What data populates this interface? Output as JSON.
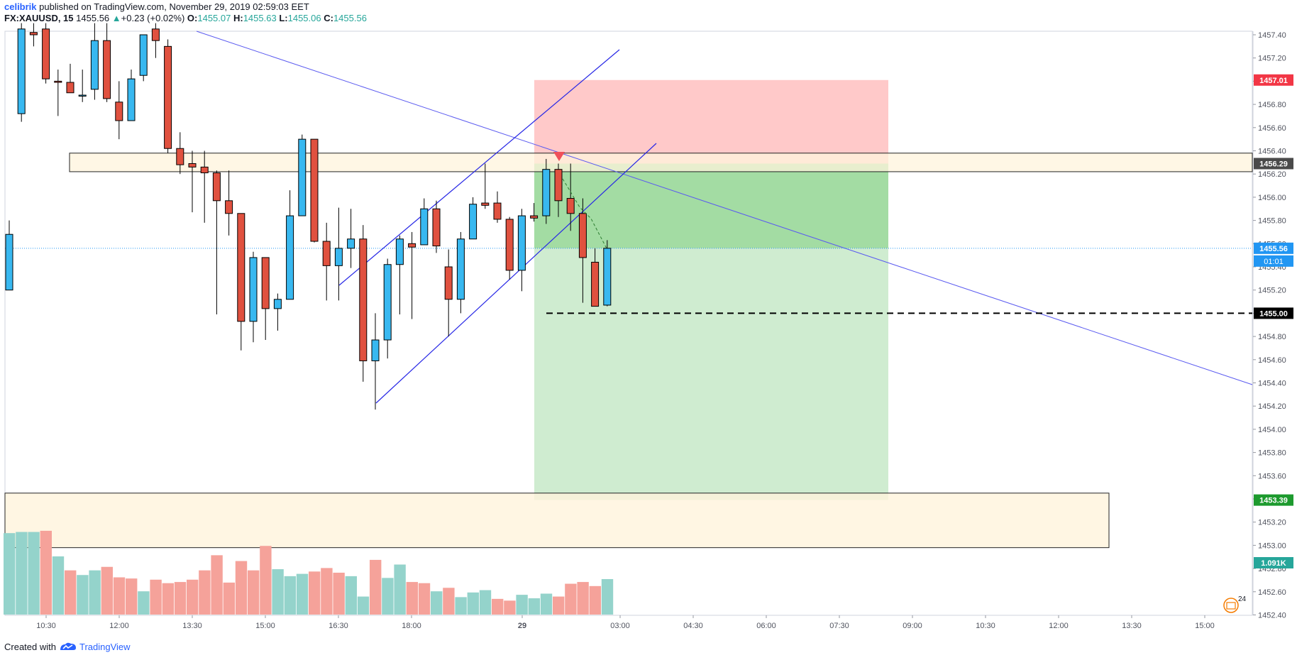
{
  "header": {
    "author": "celibrik",
    "published_text": "published on TradingView.com, November 29, 2019 02:59:03 EET",
    "symbol": "FX:XAUUSD, 15",
    "last": "1455.56",
    "change_arrow": "▲",
    "change": "+0.23 (+0.02%)",
    "o_label": "O:",
    "o": "1455.07",
    "h_label": "H:",
    "h": "1455.63",
    "l_label": "L:",
    "l": "1455.06",
    "c_label": "C:",
    "c": "1455.56"
  },
  "footer": {
    "created_with": "Created with",
    "brand": "TradingView",
    "logo_icon": "tradingview-logo-icon"
  },
  "colors": {
    "up": "#38b8f0",
    "down": "#e0513f",
    "vol_up": "#94d3cb",
    "vol_down": "#f5a29a",
    "zone_fill": "#fff4dc",
    "stop_fill": "#ffc9c9",
    "target_fill_dark": "#a3dca3",
    "target_fill_light": "#cfecd0",
    "trend_line": "#5b5bf0",
    "channel": "#2727e6"
  },
  "chart_data": {
    "type": "candlestick",
    "symbol": "FX:XAUUSD",
    "interval": "15",
    "price_ticks": [
      "1457.40",
      "1457.20",
      "1457.00",
      "1456.80",
      "1456.60",
      "1456.40",
      "1456.20",
      "1456.00",
      "1455.80",
      "1455.60",
      "1455.40",
      "1455.20",
      "1455.00",
      "1454.80",
      "1454.60",
      "1454.40",
      "1454.20",
      "1454.00",
      "1453.80",
      "1453.60",
      "1453.40",
      "1453.20",
      "1453.00",
      "1452.80",
      "1452.60",
      "1452.40"
    ],
    "time_labels": [
      "10:30",
      "12:00",
      "13:30",
      "15:00",
      "16:30",
      "18:00",
      "29",
      "03:00",
      "04:30",
      "06:00",
      "07:30",
      "09:00",
      "10:30",
      "12:00",
      "13:30",
      "15:00"
    ],
    "ylim": [
      1452.4,
      1457.4
    ],
    "candles": [
      {
        "o": 1455.2,
        "h": 1455.8,
        "l": 1455.2,
        "c": 1455.68
      },
      {
        "o": 1456.72,
        "h": 1457.5,
        "l": 1456.65,
        "c": 1457.45
      },
      {
        "o": 1457.42,
        "h": 1457.5,
        "l": 1457.3,
        "c": 1457.4
      },
      {
        "o": 1457.45,
        "h": 1457.5,
        "l": 1456.98,
        "c": 1457.02
      },
      {
        "o": 1457.0,
        "h": 1457.1,
        "l": 1456.7,
        "c": 1456.99
      },
      {
        "o": 1456.99,
        "h": 1457.15,
        "l": 1456.9,
        "c": 1456.9
      },
      {
        "o": 1456.88,
        "h": 1457.1,
        "l": 1456.82,
        "c": 1456.88
      },
      {
        "o": 1456.93,
        "h": 1457.5,
        "l": 1456.84,
        "c": 1457.35
      },
      {
        "o": 1457.35,
        "h": 1457.5,
        "l": 1456.82,
        "c": 1456.85
      },
      {
        "o": 1456.82,
        "h": 1457.0,
        "l": 1456.5,
        "c": 1456.66
      },
      {
        "o": 1456.66,
        "h": 1457.1,
        "l": 1456.66,
        "c": 1457.02
      },
      {
        "o": 1457.05,
        "h": 1457.4,
        "l": 1457.0,
        "c": 1457.4
      },
      {
        "o": 1457.45,
        "h": 1457.5,
        "l": 1457.2,
        "c": 1457.35
      },
      {
        "o": 1457.3,
        "h": 1457.36,
        "l": 1456.38,
        "c": 1456.42
      },
      {
        "o": 1456.42,
        "h": 1456.56,
        "l": 1456.2,
        "c": 1456.28
      },
      {
        "o": 1456.29,
        "h": 1456.4,
        "l": 1455.87,
        "c": 1456.26
      },
      {
        "o": 1456.26,
        "h": 1456.4,
        "l": 1455.78,
        "c": 1456.21
      },
      {
        "o": 1456.21,
        "h": 1456.23,
        "l": 1454.99,
        "c": 1455.97
      },
      {
        "o": 1455.97,
        "h": 1456.23,
        "l": 1455.67,
        "c": 1455.86
      },
      {
        "o": 1455.86,
        "h": 1455.86,
        "l": 1454.68,
        "c": 1454.93
      },
      {
        "o": 1454.93,
        "h": 1455.53,
        "l": 1454.75,
        "c": 1455.48
      },
      {
        "o": 1455.48,
        "h": 1455.48,
        "l": 1454.77,
        "c": 1455.04
      },
      {
        "o": 1455.04,
        "h": 1455.17,
        "l": 1454.85,
        "c": 1455.12
      },
      {
        "o": 1455.12,
        "h": 1456.06,
        "l": 1455.12,
        "c": 1455.84
      },
      {
        "o": 1455.84,
        "h": 1456.54,
        "l": 1455.84,
        "c": 1456.5
      },
      {
        "o": 1456.5,
        "h": 1456.5,
        "l": 1455.61,
        "c": 1455.62
      },
      {
        "o": 1455.62,
        "h": 1455.78,
        "l": 1455.11,
        "c": 1455.41
      },
      {
        "o": 1455.41,
        "h": 1455.91,
        "l": 1455.11,
        "c": 1455.56
      },
      {
        "o": 1455.56,
        "h": 1455.9,
        "l": 1455.39,
        "c": 1455.64
      },
      {
        "o": 1455.64,
        "h": 1455.76,
        "l": 1454.41,
        "c": 1454.59
      },
      {
        "o": 1454.59,
        "h": 1455.0,
        "l": 1454.17,
        "c": 1454.77
      },
      {
        "o": 1454.77,
        "h": 1455.47,
        "l": 1454.61,
        "c": 1455.42
      },
      {
        "o": 1455.42,
        "h": 1455.67,
        "l": 1454.99,
        "c": 1455.64
      },
      {
        "o": 1455.6,
        "h": 1455.7,
        "l": 1454.95,
        "c": 1455.57
      },
      {
        "o": 1455.59,
        "h": 1455.99,
        "l": 1455.59,
        "c": 1455.9
      },
      {
        "o": 1455.9,
        "h": 1455.97,
        "l": 1455.52,
        "c": 1455.58
      },
      {
        "o": 1455.4,
        "h": 1455.55,
        "l": 1454.8,
        "c": 1455.12
      },
      {
        "o": 1455.12,
        "h": 1455.7,
        "l": 1455.0,
        "c": 1455.64
      },
      {
        "o": 1455.64,
        "h": 1456.0,
        "l": 1455.64,
        "c": 1455.94
      },
      {
        "o": 1455.95,
        "h": 1456.29,
        "l": 1455.9,
        "c": 1455.93
      },
      {
        "o": 1455.95,
        "h": 1456.05,
        "l": 1455.78,
        "c": 1455.81
      },
      {
        "o": 1455.81,
        "h": 1455.83,
        "l": 1455.29,
        "c": 1455.37
      },
      {
        "o": 1455.37,
        "h": 1455.9,
        "l": 1455.19,
        "c": 1455.84
      },
      {
        "o": 1455.84,
        "h": 1455.95,
        "l": 1455.79,
        "c": 1455.82
      },
      {
        "o": 1455.84,
        "h": 1456.33,
        "l": 1455.77,
        "c": 1456.24
      },
      {
        "o": 1456.24,
        "h": 1456.29,
        "l": 1455.83,
        "c": 1455.97
      },
      {
        "o": 1455.99,
        "h": 1456.29,
        "l": 1455.71,
        "c": 1455.86
      },
      {
        "o": 1455.86,
        "h": 1455.99,
        "l": 1455.09,
        "c": 1455.48
      },
      {
        "o": 1455.44,
        "h": 1455.56,
        "l": 1455.06,
        "c": 1455.06
      },
      {
        "o": 1455.07,
        "h": 1455.63,
        "l": 1455.06,
        "c": 1455.56
      }
    ],
    "volume": [
      {
        "v": 1.4,
        "up": true
      },
      {
        "v": 1.42,
        "up": true
      },
      {
        "v": 1.42,
        "up": true
      },
      {
        "v": 1.44,
        "up": false
      },
      {
        "v": 1.0,
        "up": true
      },
      {
        "v": 0.76,
        "up": false
      },
      {
        "v": 0.68,
        "up": true
      },
      {
        "v": 0.76,
        "up": true
      },
      {
        "v": 0.82,
        "up": false
      },
      {
        "v": 0.64,
        "up": false
      },
      {
        "v": 0.62,
        "up": false
      },
      {
        "v": 0.4,
        "up": true
      },
      {
        "v": 0.6,
        "up": false
      },
      {
        "v": 0.54,
        "up": false
      },
      {
        "v": 0.56,
        "up": false
      },
      {
        "v": 0.6,
        "up": false
      },
      {
        "v": 0.76,
        "up": false
      },
      {
        "v": 1.02,
        "up": false
      },
      {
        "v": 0.55,
        "up": false
      },
      {
        "v": 0.92,
        "up": false
      },
      {
        "v": 0.76,
        "up": false
      },
      {
        "v": 1.18,
        "up": false
      },
      {
        "v": 0.78,
        "up": true
      },
      {
        "v": 0.66,
        "up": true
      },
      {
        "v": 0.7,
        "up": true
      },
      {
        "v": 0.74,
        "up": false
      },
      {
        "v": 0.8,
        "up": false
      },
      {
        "v": 0.72,
        "up": false
      },
      {
        "v": 0.66,
        "up": true
      },
      {
        "v": 0.31,
        "up": true
      },
      {
        "v": 0.94,
        "up": false
      },
      {
        "v": 0.63,
        "up": true
      },
      {
        "v": 0.86,
        "up": true
      },
      {
        "v": 0.56,
        "up": false
      },
      {
        "v": 0.54,
        "up": false
      },
      {
        "v": 0.4,
        "up": true
      },
      {
        "v": 0.46,
        "up": false
      },
      {
        "v": 0.3,
        "up": true
      },
      {
        "v": 0.38,
        "up": true
      },
      {
        "v": 0.42,
        "up": true
      },
      {
        "v": 0.27,
        "up": false
      },
      {
        "v": 0.24,
        "up": false
      },
      {
        "v": 0.34,
        "up": true
      },
      {
        "v": 0.28,
        "up": true
      },
      {
        "v": 0.36,
        "up": true
      },
      {
        "v": 0.31,
        "up": false
      },
      {
        "v": 0.53,
        "up": false
      },
      {
        "v": 0.56,
        "up": false
      },
      {
        "v": 0.49,
        "up": false
      },
      {
        "v": 0.61,
        "up": true
      }
    ],
    "volume_label": "1.091K",
    "price_labels": [
      {
        "price": 1457.01,
        "text": "1457.01",
        "color": "#f23645",
        "text_color": "#ffffff"
      },
      {
        "price": 1456.29,
        "text": "1456.29",
        "color": "#4a4a4a",
        "text_color": "#ffffff"
      },
      {
        "price": 1455.56,
        "text": "1455.56",
        "color": "#2196f3",
        "text_color": "#ffffff"
      },
      {
        "price": 1455.0,
        "text": "1455.00",
        "color": "#000000",
        "text_color": "#ffffff"
      },
      {
        "price": 1453.39,
        "text": "1453.39",
        "color": "#1d9a2e",
        "text_color": "#ffffff"
      }
    ],
    "countdown": "01:01",
    "position": {
      "entry": 1456.29,
      "stop": 1457.01,
      "target": 1453.39,
      "current": 1455.56
    },
    "dashed_level": 1455.0,
    "resistance_zone": [
      1456.22,
      1456.38
    ],
    "support_zone": [
      1452.98,
      1453.45
    ],
    "badge_number": "24",
    "grid": false
  }
}
